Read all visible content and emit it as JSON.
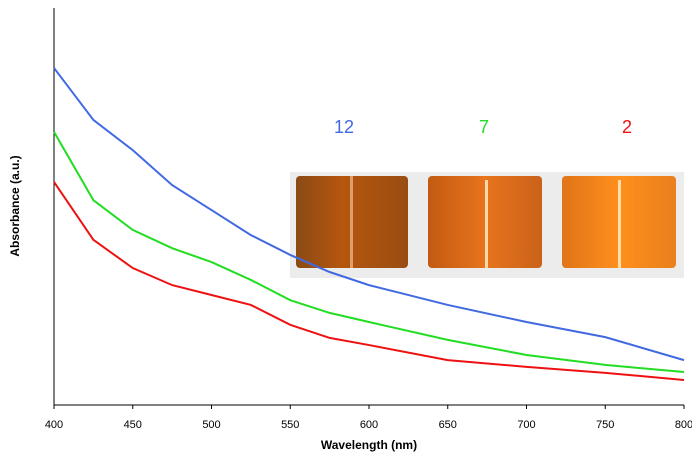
{
  "chart_data": {
    "type": "line",
    "x_label": "Wavelength (nm)",
    "y_label": "Absorbance (a.u.)",
    "x": [
      400,
      425,
      450,
      475,
      500,
      525,
      550,
      575,
      600,
      650,
      700,
      750,
      800
    ],
    "xlim": [
      400,
      800
    ],
    "xticks": [
      400,
      450,
      500,
      550,
      600,
      650,
      700,
      750,
      800
    ],
    "ylim": [
      0,
      1
    ],
    "series": [
      {
        "name": "12",
        "color": "#4169e1",
        "values": [
          0.849,
          0.718,
          0.642,
          0.554,
          0.491,
          0.428,
          0.378,
          0.335,
          0.302,
          0.252,
          0.209,
          0.171,
          0.113
        ]
      },
      {
        "name": "7",
        "color": "#22dd22",
        "values": [
          0.688,
          0.516,
          0.441,
          0.395,
          0.36,
          0.315,
          0.264,
          0.232,
          0.209,
          0.164,
          0.126,
          0.101,
          0.083
        ]
      },
      {
        "name": "2",
        "color": "#ee1111",
        "values": [
          0.562,
          0.416,
          0.345,
          0.302,
          0.277,
          0.252,
          0.202,
          0.169,
          0.151,
          0.113,
          0.096,
          0.081,
          0.063
        ]
      }
    ]
  }
}
